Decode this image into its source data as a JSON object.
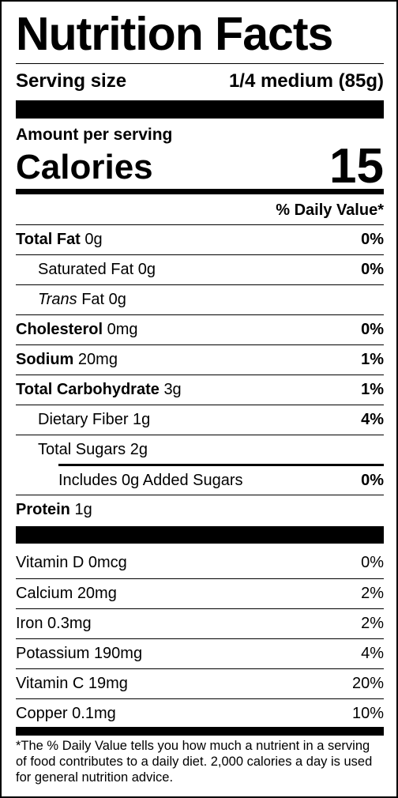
{
  "title": "Nutrition Facts",
  "serving": {
    "label": "Serving size",
    "value": "1/4 medium (85g)"
  },
  "amount_per_serving": "Amount per serving",
  "calories": {
    "label": "Calories",
    "value": "15"
  },
  "daily_value_header": "% Daily Value*",
  "nutrients": [
    {
      "name": "Total Fat",
      "amount": "0g",
      "dv": "0%",
      "level": 0
    },
    {
      "name": "Saturated Fat",
      "amount": "0g",
      "dv": "0%",
      "level": 1
    },
    {
      "prefix": "Trans",
      "name": "Fat",
      "amount": "0g",
      "level": 1
    },
    {
      "name": "Cholesterol",
      "amount": "0mg",
      "dv": "0%",
      "level": 0
    },
    {
      "name": "Sodium",
      "amount": "20mg",
      "dv": "1%",
      "level": 0
    },
    {
      "name": "Total Carbohydrate",
      "amount": "3g",
      "dv": "1%",
      "level": 0
    },
    {
      "name": "Dietary Fiber",
      "amount": "1g",
      "dv": "4%",
      "level": 1
    },
    {
      "name": "Total Sugars",
      "amount": "2g",
      "level": 1
    },
    {
      "name": "Includes 0g Added Sugars",
      "dv": "0%",
      "level": 2
    },
    {
      "name": "Protein",
      "amount": "1g",
      "level": 0
    }
  ],
  "vitamins": [
    {
      "name": "Vitamin D",
      "amount": "0mcg",
      "dv": "0%"
    },
    {
      "name": "Calcium",
      "amount": "20mg",
      "dv": "2%"
    },
    {
      "name": "Iron",
      "amount": "0.3mg",
      "dv": "2%"
    },
    {
      "name": "Potassium",
      "amount": "190mg",
      "dv": "4%"
    },
    {
      "name": "Vitamin C",
      "amount": "19mg",
      "dv": "20%"
    },
    {
      "name": "Copper",
      "amount": "0.1mg",
      "dv": "10%"
    }
  ],
  "footnote": "*The % Daily Value tells you how much a nutrient in a serving of food contributes to a daily diet. 2,000 calories a day is used for general nutrition advice."
}
